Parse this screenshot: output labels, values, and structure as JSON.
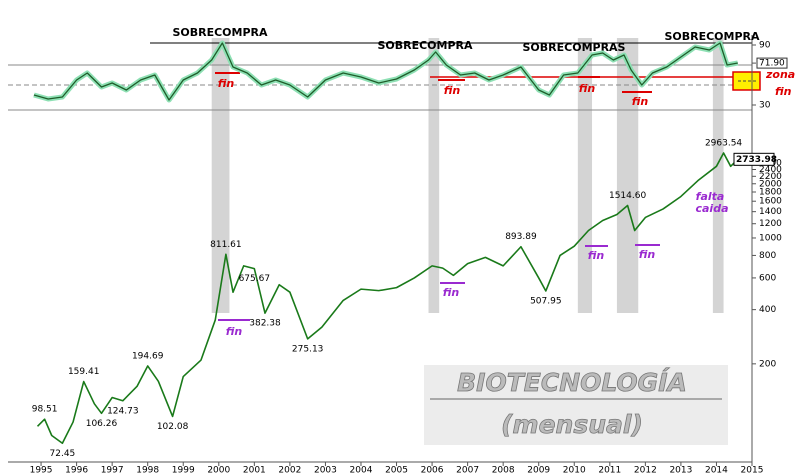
{
  "chart_data": [
    {
      "type": "line",
      "series": [
        {
          "name": "Oscilador",
          "color": "#1e5e2a",
          "x": [
            1994.8,
            1995.2,
            1995.6,
            1996.0,
            1996.3,
            1996.7,
            1997.0,
            1997.4,
            1997.8,
            1998.2,
            1998.6,
            1999.0,
            1999.4,
            1999.8,
            2000.1,
            2000.4,
            2000.8,
            2001.2,
            2001.6,
            2002.0,
            2002.5,
            2003.0,
            2003.5,
            2004.0,
            2004.5,
            2005.0,
            2005.5,
            2005.9,
            2006.1,
            2006.4,
            2006.8,
            2007.2,
            2007.6,
            2008.0,
            2008.5,
            2009.0,
            2009.3,
            2009.7,
            2010.1,
            2010.5,
            2010.8,
            2011.1,
            2011.4,
            2011.6,
            2011.9,
            2012.2,
            2012.6,
            2013.0,
            2013.4,
            2013.8,
            2014.1,
            2014.3,
            2014.6
          ],
          "values": [
            40,
            36,
            38,
            55,
            62,
            48,
            52,
            45,
            55,
            60,
            35,
            55,
            62,
            75,
            92,
            68,
            62,
            50,
            55,
            50,
            38,
            55,
            62,
            58,
            52,
            56,
            65,
            75,
            83,
            70,
            60,
            62,
            55,
            60,
            68,
            45,
            40,
            60,
            62,
            80,
            82,
            75,
            80,
            65,
            50,
            62,
            68,
            78,
            88,
            85,
            92,
            70,
            72
          ]
        }
      ],
      "xlim": [
        1994.07,
        2015
      ],
      "ylim": [
        25,
        100
      ],
      "yticks": [
        30,
        {
          "value": 71.9,
          "label": "71.90"
        },
        90
      ],
      "annotations": [
        "SOBRECOMPRA",
        "SOBRECOMPRA",
        "SOBRECOMPRAS",
        "SOBRECOMPRA"
      ],
      "end_labels": [
        "fin",
        "fin",
        "fin",
        "fin",
        "fin"
      ],
      "zone_label": "zona"
    },
    {
      "type": "line",
      "title": "BIOTECNOLOGÍA",
      "subtitle": "(mensual)",
      "log_scale": true,
      "grid": false,
      "series": [
        {
          "name": "Precio",
          "color": "#1a7a1a",
          "x": [
            1994.9,
            1995.1,
            1995.3,
            1995.6,
            1995.9,
            1996.2,
            1996.5,
            1996.7,
            1997.0,
            1997.3,
            1997.7,
            1998.0,
            1998.3,
            1998.7,
            1999.0,
            1999.5,
            1999.9,
            2000.2,
            2000.4,
            2000.7,
            2001.0,
            2001.3,
            2001.7,
            2002.0,
            2002.5,
            2002.9,
            2003.5,
            2004.0,
            2004.5,
            2005.0,
            2005.5,
            2006.0,
            2006.3,
            2006.6,
            2007.0,
            2007.5,
            2008.0,
            2008.5,
            2009.0,
            2009.2,
            2009.6,
            2010.0,
            2010.4,
            2010.8,
            2011.2,
            2011.5,
            2011.7,
            2012.0,
            2012.5,
            2013.0,
            2013.5,
            2014.0,
            2014.2,
            2014.4,
            2014.6
          ],
          "values": [
            90,
            98.51,
            80,
            72.45,
            95,
            159.41,
            120,
            106.26,
            130,
            124.73,
            150,
            194.69,
            160,
            102.08,
            170,
            210,
            350,
            811.61,
            500,
            700,
            675.67,
            382.38,
            550,
            500,
            275.13,
            320,
            450,
            520,
            510,
            530,
            600,
            700,
            680,
            620,
            720,
            780,
            700,
            893.89,
            600,
            507.95,
            800,
            900,
            1100,
            1250,
            1350,
            1514.6,
            1100,
            1300,
            1450,
            1700,
            2100,
            2500,
            2963.54,
            2500,
            2733.98
          ],
          "value_labels": [
            null,
            "98.51",
            null,
            "72.45",
            null,
            "159.41",
            null,
            "106.26",
            null,
            "124.73",
            null,
            "194.69",
            null,
            "102.08",
            null,
            null,
            null,
            "811.61",
            null,
            null,
            "675.67",
            "382.38",
            null,
            null,
            "275.13",
            null,
            null,
            null,
            null,
            null,
            null,
            null,
            null,
            null,
            null,
            null,
            null,
            "893.89",
            null,
            "507.95",
            null,
            null,
            null,
            null,
            null,
            "1514.60",
            null,
            null,
            null,
            null,
            null,
            null,
            "2963.54",
            null,
            "2733.98"
          ]
        }
      ],
      "xlim": [
        1994.07,
        2015
      ],
      "ylim": [
        60,
        3500
      ],
      "xticks": [
        1995,
        1996,
        1997,
        1998,
        1999,
        2000,
        2001,
        2002,
        2003,
        2004,
        2005,
        2006,
        2007,
        2008,
        2009,
        2010,
        2011,
        2012,
        2013,
        2014,
        2015
      ],
      "yticks": [
        200,
        400,
        600,
        800,
        1000,
        1200,
        1400,
        1600,
        1800,
        2000,
        2200,
        2400,
        2600
      ],
      "shaded_periods": [
        [
          1999.8,
          2000.3
        ],
        [
          2005.9,
          2006.2
        ],
        [
          2010.1,
          2010.5
        ],
        [
          2011.2,
          2011.8
        ],
        [
          2013.9,
          2014.2
        ]
      ],
      "end_labels": [
        "fin",
        "fin",
        "fin",
        "fin"
      ],
      "note": [
        "falta",
        "caida"
      ]
    }
  ]
}
